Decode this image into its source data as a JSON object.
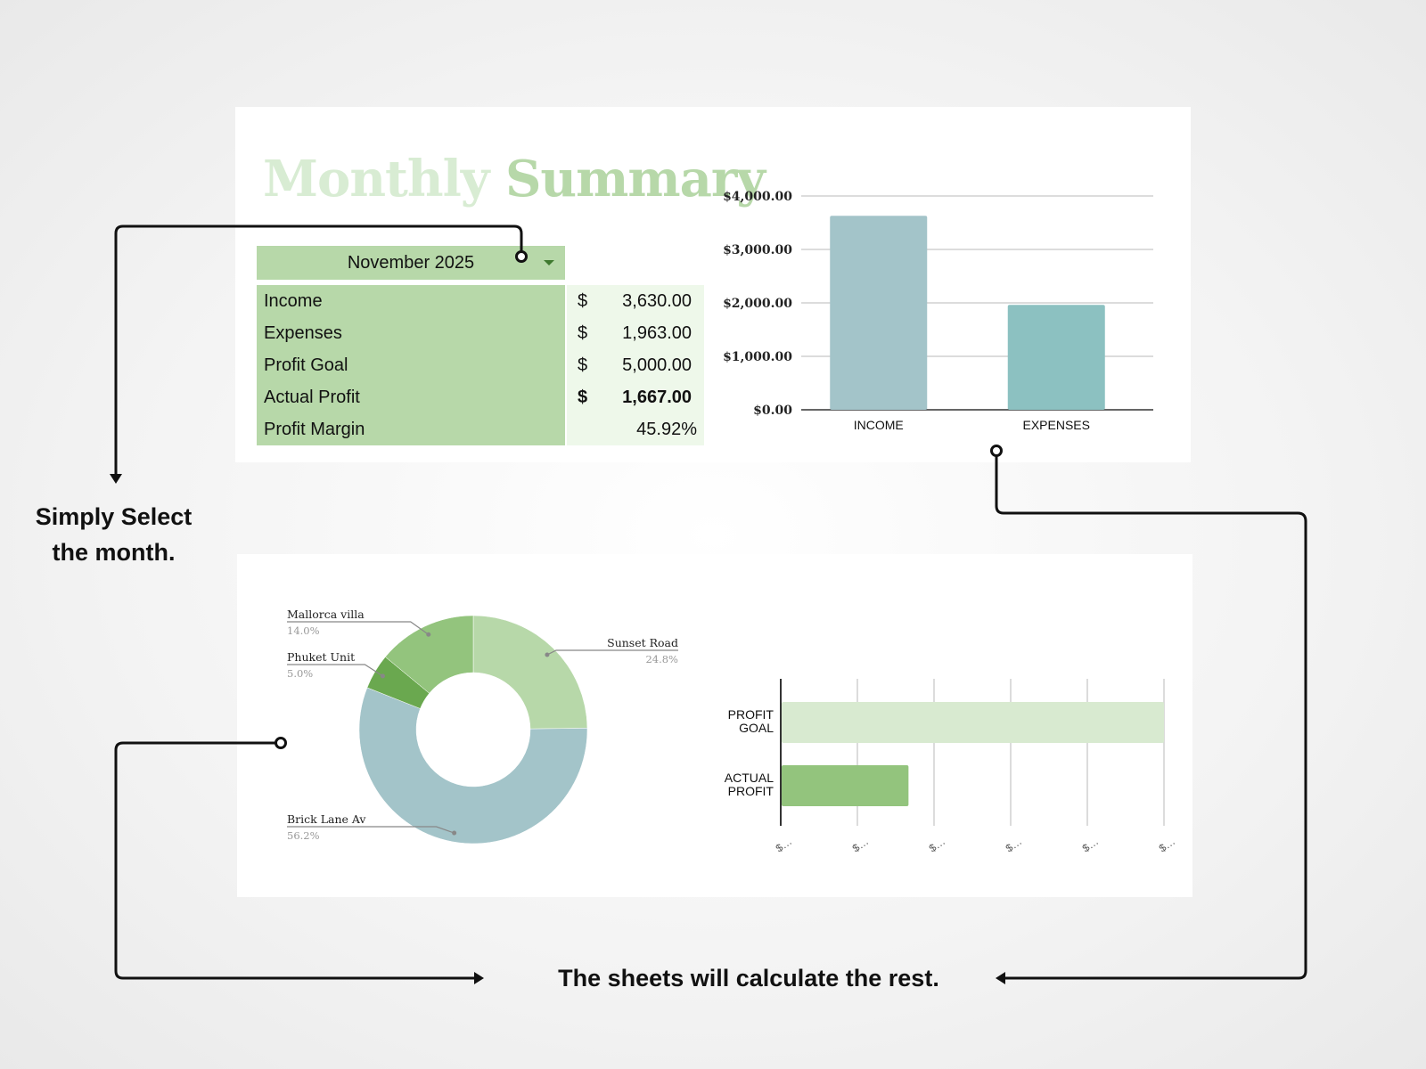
{
  "summary": {
    "title_word1": "Monthly",
    "title_word2": "Summary",
    "month": "November 2025",
    "rows": [
      {
        "label": "Income",
        "currency": "$",
        "value": "3,630.00"
      },
      {
        "label": "Expenses",
        "currency": "$",
        "value": "1,963.00"
      },
      {
        "label": "Profit Goal",
        "currency": "$",
        "value": "5,000.00"
      },
      {
        "label": "Actual Profit",
        "currency": "$",
        "value": "1,667.00"
      },
      {
        "label": "Profit Margin",
        "value": "45.92%"
      }
    ]
  },
  "annotations": {
    "select_line1": "Simply Select",
    "select_line2": "the month.",
    "calculate": "The sheets will calculate the rest."
  },
  "colors": {
    "accent_green": "#b7d8a9",
    "light_green": "#eef8ea",
    "income_bar": "#a3c4c9",
    "expenses_bar": "#8cc1c1",
    "profit_goal_bar": "#d8ead0",
    "actual_profit_bar": "#93c47d"
  },
  "chart_data": [
    {
      "type": "bar",
      "categories": [
        "INCOME",
        "EXPENSES"
      ],
      "values": [
        3630,
        1963
      ],
      "y_ticks": [
        "$0.00",
        "$1,000.00",
        "$2,000.00",
        "$3,000.00",
        "$4,000.00"
      ],
      "ylim": [
        0,
        4000
      ],
      "grid": true
    },
    {
      "type": "pie",
      "donut": true,
      "slices": [
        {
          "label": "Sunset Road",
          "value": 24.8,
          "pct_label": "24.8%",
          "color": "#b7d8a9"
        },
        {
          "label": "Brick Lane Av",
          "value": 56.2,
          "pct_label": "56.2%",
          "color": "#a3c4c9"
        },
        {
          "label": "Phuket Unit",
          "value": 5.0,
          "pct_label": "5.0%",
          "color": "#6aa84f"
        },
        {
          "label": "Mallorca villa",
          "value": 14.0,
          "pct_label": "14.0%",
          "color": "#93c47d"
        }
      ]
    },
    {
      "type": "bar",
      "orientation": "horizontal",
      "categories": [
        [
          "PROFIT",
          "GOAL"
        ],
        [
          "ACTUAL",
          "PROFIT"
        ]
      ],
      "values": [
        5000,
        1667
      ],
      "xlim": [
        0,
        5000
      ],
      "x_tick_labels": [
        "$…",
        "$…",
        "$…",
        "$…",
        "$…",
        "$…"
      ],
      "grid": true
    }
  ]
}
